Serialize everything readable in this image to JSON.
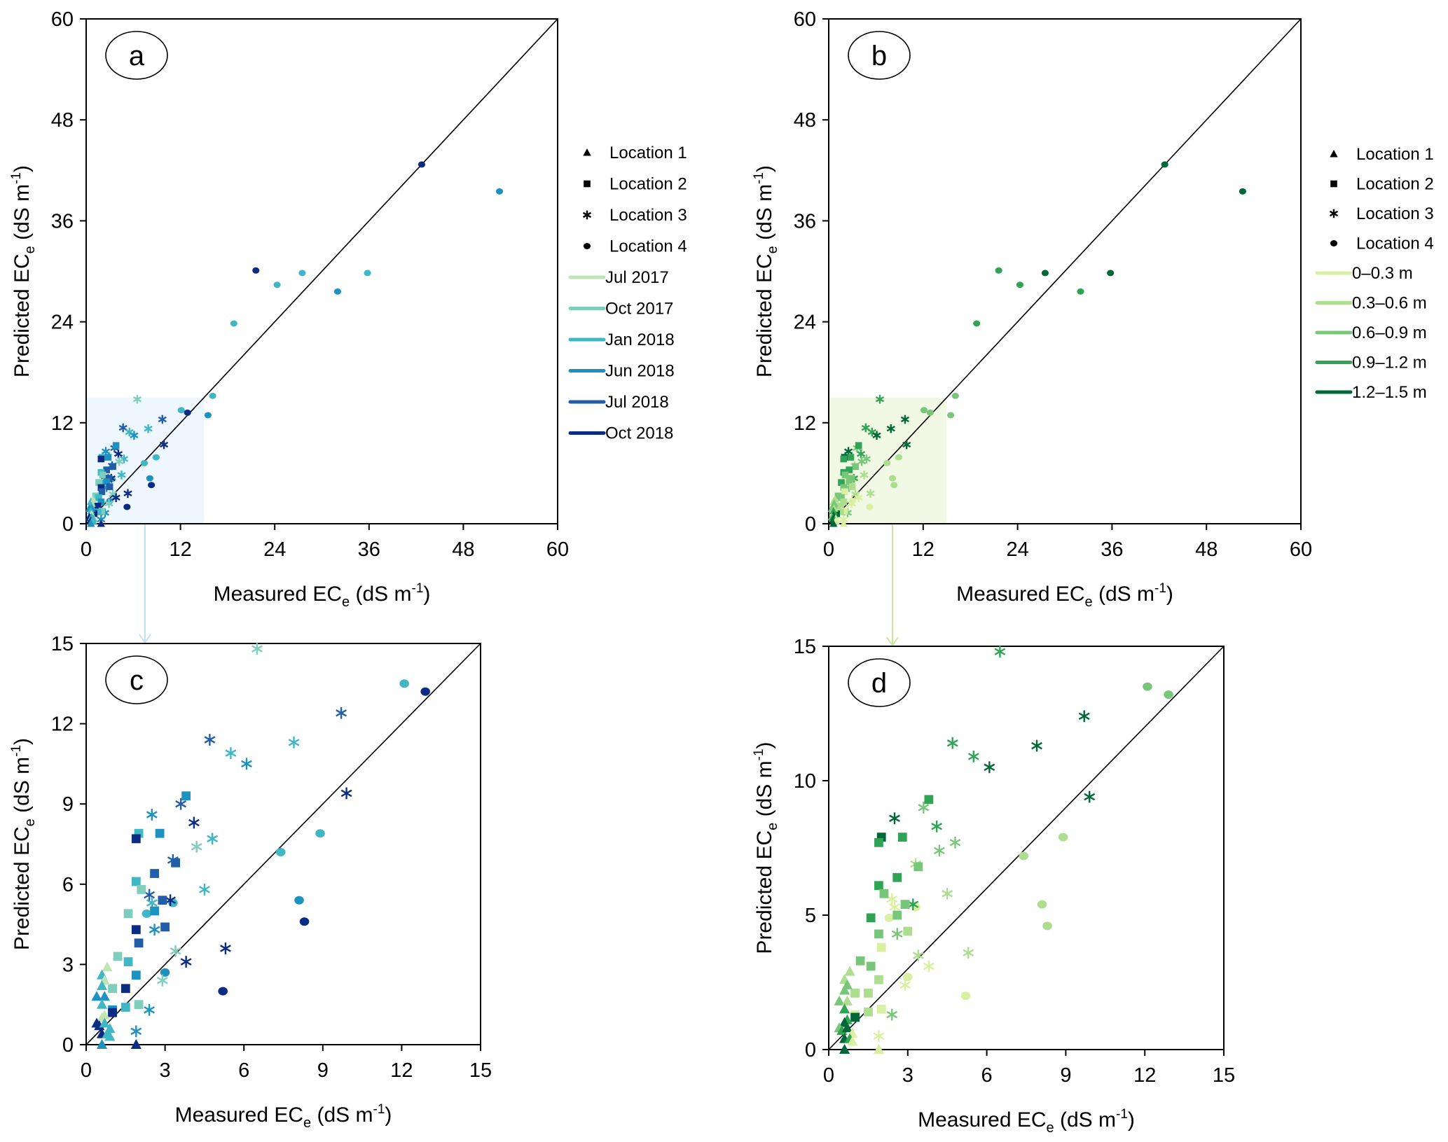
{
  "chart_data": [
    {
      "panel": "a",
      "type": "scatter",
      "title": "",
      "xlabel": "Measured EC_e (dS m^-1)",
      "ylabel": "Predicted EC_e (dS m^-1)",
      "xlim": [
        0,
        60
      ],
      "ylim": [
        0,
        60
      ],
      "xticks": [
        "0",
        "12",
        "24",
        "36",
        "48",
        "60"
      ],
      "yticks": [
        "0",
        "12",
        "24",
        "36",
        "48",
        "60"
      ],
      "color_by": "period",
      "reference_line": "1:1",
      "zoom_box": [
        0,
        15
      ],
      "legend_position": "right"
    },
    {
      "panel": "b",
      "type": "scatter",
      "title": "",
      "xlabel": "Measured EC_e (dS m^-1)",
      "ylabel": "Predicted EC_e (dS m^-1)",
      "xlim": [
        0,
        60
      ],
      "ylim": [
        0,
        60
      ],
      "xticks": [
        "0",
        "12",
        "24",
        "36",
        "48",
        "60"
      ],
      "yticks": [
        "0",
        "12",
        "24",
        "36",
        "48",
        "60"
      ],
      "color_by": "depth",
      "reference_line": "1:1",
      "zoom_box": [
        0,
        15
      ],
      "legend_position": "right"
    },
    {
      "panel": "c",
      "type": "scatter",
      "title": "",
      "xlabel": "Measured EC_e (dS m^-1)",
      "ylabel": "Predicted EC_e (dS m^-1)",
      "xlim": [
        0,
        15
      ],
      "ylim": [
        0,
        15
      ],
      "xticks": [
        "0",
        "3",
        "6",
        "9",
        "12",
        "15"
      ],
      "yticks": [
        "0",
        "3",
        "6",
        "9",
        "12",
        "15"
      ],
      "color_by": "period",
      "reference_line": "1:1"
    },
    {
      "panel": "d",
      "type": "scatter",
      "title": "",
      "xlabel": "Measured EC_e (dS m^-1)",
      "ylabel": "Predicted EC_e (dS m^-1)",
      "xlim": [
        0,
        15
      ],
      "ylim": [
        0,
        15
      ],
      "xticks": [
        "0",
        "3",
        "6",
        "9",
        "12",
        "15"
      ],
      "yticks": [
        "0",
        "5",
        "10",
        "15"
      ],
      "color_by": "depth",
      "reference_line": "1:1"
    }
  ],
  "axis_text": {
    "x_main": "Measured EC",
    "x_sub": "e",
    "x_unit_open": " (dS m",
    "x_sup": "-1",
    "x_close": ")",
    "y_main": "Predicted EC",
    "y_sub": "e",
    "y_unit_open": " (dS m",
    "y_sup": "-1",
    "y_close": ")"
  },
  "legend": {
    "locations": [
      {
        "label": "Location 1",
        "marker": "triangle"
      },
      {
        "label": "Location 2",
        "marker": "square"
      },
      {
        "label": "Location 3",
        "marker": "asterisk"
      },
      {
        "label": "Location 4",
        "marker": "circle"
      }
    ],
    "periods": [
      {
        "label": "Jul 2017",
        "color": "#bfe5b4"
      },
      {
        "label": "Oct 2017",
        "color": "#7fcdbb"
      },
      {
        "label": "Jan 2018",
        "color": "#41b6c4"
      },
      {
        "label": "Jun 2018",
        "color": "#1d91c0"
      },
      {
        "label": "Jul 2018",
        "color": "#225ea8"
      },
      {
        "label": "Oct 2018",
        "color": "#0c2c84"
      }
    ],
    "depths": [
      {
        "label": "0–0.3 m",
        "color": "#d9f0a3"
      },
      {
        "label": "0.3–0.6 m",
        "color": "#addd8e"
      },
      {
        "label": "0.6–0.9 m",
        "color": "#78c679"
      },
      {
        "label": "0.9–1.2 m",
        "color": "#31a354"
      },
      {
        "label": "1.2–1.5 m",
        "color": "#006837"
      }
    ]
  },
  "panel_labels": [
    "a",
    "b",
    "c",
    "d"
  ],
  "points": [
    {
      "x": 42.7,
      "y": 42.7,
      "loc": 4,
      "p": 5,
      "d": 4
    },
    {
      "x": 52.6,
      "y": 39.5,
      "loc": 4,
      "p": 3,
      "d": 4
    },
    {
      "x": 21.6,
      "y": 30.1,
      "loc": 4,
      "p": 5,
      "d": 3
    },
    {
      "x": 27.5,
      "y": 29.8,
      "loc": 4,
      "p": 2,
      "d": 4
    },
    {
      "x": 35.8,
      "y": 29.8,
      "loc": 4,
      "p": 2,
      "d": 4
    },
    {
      "x": 24.3,
      "y": 28.4,
      "loc": 4,
      "p": 2,
      "d": 3
    },
    {
      "x": 32.0,
      "y": 27.6,
      "loc": 4,
      "p": 3,
      "d": 3
    },
    {
      "x": 18.8,
      "y": 23.8,
      "loc": 4,
      "p": 2,
      "d": 3
    },
    {
      "x": 16.1,
      "y": 15.2,
      "loc": 4,
      "p": 2,
      "d": 2
    },
    {
      "x": 15.5,
      "y": 12.9,
      "loc": 4,
      "p": 3,
      "d": 2
    },
    {
      "x": 12.1,
      "y": 13.5,
      "loc": 4,
      "p": 2,
      "d": 2
    },
    {
      "x": 12.9,
      "y": 13.2,
      "loc": 4,
      "p": 5,
      "d": 2
    },
    {
      "x": 8.9,
      "y": 7.9,
      "loc": 4,
      "p": 2,
      "d": 1
    },
    {
      "x": 7.4,
      "y": 7.2,
      "loc": 4,
      "p": 2,
      "d": 1
    },
    {
      "x": 8.1,
      "y": 5.4,
      "loc": 4,
      "p": 3,
      "d": 1
    },
    {
      "x": 8.3,
      "y": 4.6,
      "loc": 4,
      "p": 5,
      "d": 1
    },
    {
      "x": 5.2,
      "y": 2.0,
      "loc": 4,
      "p": 5,
      "d": 0
    },
    {
      "x": 3.3,
      "y": 5.3,
      "loc": 4,
      "p": 2,
      "d": 0
    },
    {
      "x": 2.3,
      "y": 4.9,
      "loc": 4,
      "p": 2,
      "d": 0
    },
    {
      "x": 3.0,
      "y": 2.7,
      "loc": 4,
      "p": 3,
      "d": 0
    },
    {
      "x": 6.5,
      "y": 14.8,
      "loc": 3,
      "p": 1,
      "d": 3
    },
    {
      "x": 9.7,
      "y": 12.4,
      "loc": 3,
      "p": 4,
      "d": 4
    },
    {
      "x": 4.7,
      "y": 11.4,
      "loc": 3,
      "p": 4,
      "d": 3
    },
    {
      "x": 7.9,
      "y": 11.3,
      "loc": 3,
      "p": 2,
      "d": 4
    },
    {
      "x": 5.5,
      "y": 10.9,
      "loc": 3,
      "p": 2,
      "d": 3
    },
    {
      "x": 6.1,
      "y": 10.5,
      "loc": 3,
      "p": 3,
      "d": 4
    },
    {
      "x": 9.9,
      "y": 9.4,
      "loc": 3,
      "p": 5,
      "d": 4
    },
    {
      "x": 3.6,
      "y": 9.0,
      "loc": 3,
      "p": 4,
      "d": 2
    },
    {
      "x": 2.5,
      "y": 8.6,
      "loc": 3,
      "p": 3,
      "d": 4
    },
    {
      "x": 4.1,
      "y": 8.3,
      "loc": 3,
      "p": 5,
      "d": 3
    },
    {
      "x": 4.8,
      "y": 7.7,
      "loc": 3,
      "p": 2,
      "d": 2
    },
    {
      "x": 4.2,
      "y": 7.4,
      "loc": 3,
      "p": 1,
      "d": 2
    },
    {
      "x": 3.3,
      "y": 6.9,
      "loc": 3,
      "p": 4,
      "d": 1
    },
    {
      "x": 4.5,
      "y": 5.8,
      "loc": 3,
      "p": 2,
      "d": 1
    },
    {
      "x": 2.4,
      "y": 5.6,
      "loc": 3,
      "p": 4,
      "d": 0
    },
    {
      "x": 2.5,
      "y": 5.3,
      "loc": 3,
      "p": 2,
      "d": 0
    },
    {
      "x": 3.2,
      "y": 5.4,
      "loc": 3,
      "p": 5,
      "d": 3
    },
    {
      "x": 2.6,
      "y": 4.3,
      "loc": 3,
      "p": 3,
      "d": 2
    },
    {
      "x": 5.3,
      "y": 3.6,
      "loc": 3,
      "p": 5,
      "d": 1
    },
    {
      "x": 3.4,
      "y": 3.5,
      "loc": 3,
      "p": 1,
      "d": 1
    },
    {
      "x": 3.8,
      "y": 3.1,
      "loc": 3,
      "p": 5,
      "d": 0
    },
    {
      "x": 2.9,
      "y": 2.4,
      "loc": 3,
      "p": 1,
      "d": 0
    },
    {
      "x": 2.4,
      "y": 1.3,
      "loc": 3,
      "p": 3,
      "d": 2
    },
    {
      "x": 1.9,
      "y": 0.5,
      "loc": 3,
      "p": 3,
      "d": 0
    },
    {
      "x": 3.8,
      "y": 9.3,
      "loc": 2,
      "p": 3,
      "d": 3
    },
    {
      "x": 2.0,
      "y": 7.9,
      "loc": 2,
      "p": 2,
      "d": 4
    },
    {
      "x": 2.8,
      "y": 7.9,
      "loc": 2,
      "p": 3,
      "d": 3
    },
    {
      "x": 1.9,
      "y": 7.7,
      "loc": 2,
      "p": 5,
      "d": 3
    },
    {
      "x": 3.4,
      "y": 6.8,
      "loc": 2,
      "p": 4,
      "d": 2
    },
    {
      "x": 2.6,
      "y": 6.4,
      "loc": 2,
      "p": 4,
      "d": 3
    },
    {
      "x": 1.9,
      "y": 6.1,
      "loc": 2,
      "p": 2,
      "d": 3
    },
    {
      "x": 2.1,
      "y": 5.8,
      "loc": 2,
      "p": 1,
      "d": 2
    },
    {
      "x": 2.9,
      "y": 5.4,
      "loc": 2,
      "p": 4,
      "d": 2
    },
    {
      "x": 2.6,
      "y": 5.0,
      "loc": 2,
      "p": 3,
      "d": 2
    },
    {
      "x": 1.6,
      "y": 4.9,
      "loc": 2,
      "p": 1,
      "d": 3
    },
    {
      "x": 1.9,
      "y": 4.3,
      "loc": 2,
      "p": 5,
      "d": 2
    },
    {
      "x": 3.0,
      "y": 4.4,
      "loc": 2,
      "p": 4,
      "d": 1
    },
    {
      "x": 2.0,
      "y": 3.8,
      "loc": 2,
      "p": 4,
      "d": 0
    },
    {
      "x": 1.2,
      "y": 3.3,
      "loc": 2,
      "p": 1,
      "d": 2
    },
    {
      "x": 1.6,
      "y": 3.1,
      "loc": 2,
      "p": 2,
      "d": 2
    },
    {
      "x": 1.9,
      "y": 2.6,
      "loc": 2,
      "p": 3,
      "d": 1
    },
    {
      "x": 1.0,
      "y": 2.1,
      "loc": 2,
      "p": 1,
      "d": 1
    },
    {
      "x": 1.5,
      "y": 2.1,
      "loc": 2,
      "p": 5,
      "d": 1
    },
    {
      "x": 2.0,
      "y": 1.5,
      "loc": 2,
      "p": 1,
      "d": 0
    },
    {
      "x": 1.5,
      "y": 1.4,
      "loc": 2,
      "p": 2,
      "d": 1
    },
    {
      "x": 1.0,
      "y": 1.3,
      "loc": 2,
      "p": 3,
      "d": 0
    },
    {
      "x": 1.0,
      "y": 1.2,
      "loc": 2,
      "p": 5,
      "d": 4
    },
    {
      "x": 0.8,
      "y": 2.9,
      "loc": 1,
      "p": 0,
      "d": 1
    },
    {
      "x": 0.6,
      "y": 2.6,
      "loc": 1,
      "p": 2,
      "d": 1
    },
    {
      "x": 0.7,
      "y": 2.4,
      "loc": 1,
      "p": 0,
      "d": 2
    },
    {
      "x": 0.6,
      "y": 2.2,
      "loc": 1,
      "p": 2,
      "d": 2
    },
    {
      "x": 0.4,
      "y": 1.8,
      "loc": 1,
      "p": 3,
      "d": 2
    },
    {
      "x": 0.7,
      "y": 1.8,
      "loc": 1,
      "p": 3,
      "d": 1
    },
    {
      "x": 0.6,
      "y": 1.5,
      "loc": 1,
      "p": 2,
      "d": 3
    },
    {
      "x": 0.7,
      "y": 1.1,
      "loc": 1,
      "p": 0,
      "d": 3
    },
    {
      "x": 0.6,
      "y": 1.0,
      "loc": 1,
      "p": 0,
      "d": 4
    },
    {
      "x": 0.4,
      "y": 0.8,
      "loc": 1,
      "p": 5,
      "d": 2
    },
    {
      "x": 0.5,
      "y": 0.7,
      "loc": 1,
      "p": 5,
      "d": 3
    },
    {
      "x": 0.7,
      "y": 0.8,
      "loc": 1,
      "p": 2,
      "d": 4
    },
    {
      "x": 0.9,
      "y": 0.6,
      "loc": 1,
      "p": 2,
      "d": 0
    },
    {
      "x": 0.6,
      "y": 0.4,
      "loc": 1,
      "p": 5,
      "d": 4
    },
    {
      "x": 0.8,
      "y": 0.4,
      "loc": 1,
      "p": 2,
      "d": 3
    },
    {
      "x": 0.9,
      "y": 0.3,
      "loc": 1,
      "p": 2,
      "d": 0
    },
    {
      "x": 0.6,
      "y": 0.0,
      "loc": 1,
      "p": 3,
      "d": 4
    },
    {
      "x": 1.9,
      "y": 0.0,
      "loc": 1,
      "p": 5,
      "d": 0
    }
  ]
}
